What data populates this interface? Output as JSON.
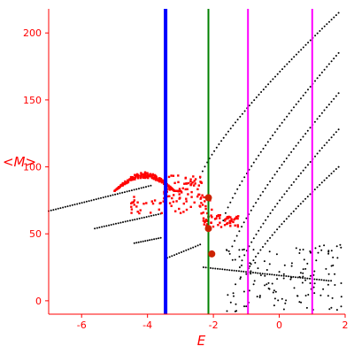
{
  "chart_data": {
    "type": "scatter",
    "title": "",
    "xlabel": "E",
    "ylabel": "<M>",
    "xlim": [
      -7,
      2
    ],
    "ylim": [
      -10,
      218
    ],
    "grid": false,
    "legend": "none",
    "x_ticks": [
      -6,
      -4,
      -2,
      0,
      2
    ],
    "y_ticks": [
      0,
      50,
      100,
      150,
      200
    ],
    "colors": {
      "axis": "#ff0000",
      "points_black": "#000000",
      "points_red": "#ff0000",
      "markers": "#cc2200",
      "line_blue": "#0000ff",
      "line_green": "#008000",
      "line_magenta": "#ff00ff"
    },
    "vertical_lines": [
      {
        "x": -3.45,
        "color": "#0000ff"
      },
      {
        "x": -2.15,
        "color": "#008000"
      },
      {
        "x": -0.95,
        "color": "#ff00ff"
      },
      {
        "x": 1.0,
        "color": "#ff00ff"
      }
    ],
    "black_curves": [
      {
        "x_start": -7.0,
        "x_end": -3.9,
        "y_start": 67,
        "y_end": 86
      },
      {
        "x_start": -5.6,
        "x_end": -3.6,
        "y_start": 54,
        "y_end": 65
      },
      {
        "x_start": -4.4,
        "x_end": -3.6,
        "y_start": 43,
        "y_end": 47
      },
      {
        "x_start": -3.4,
        "x_end": -2.4,
        "y_start": 32,
        "y_end": 42
      },
      {
        "x_start": -2.4,
        "x_end": 1.8,
        "y_start": 92,
        "y_end": 215
      },
      {
        "x_start": -1.7,
        "x_end": 1.8,
        "y_start": 60,
        "y_end": 185
      },
      {
        "x_start": -1.5,
        "x_end": 1.8,
        "y_start": 35,
        "y_end": 155
      },
      {
        "x_start": -1.2,
        "x_end": 1.8,
        "y_start": 25,
        "y_end": 128
      },
      {
        "x_start": -1.0,
        "x_end": 1.8,
        "y_start": 20,
        "y_end": 100
      },
      {
        "x_start": -2.3,
        "x_end": 1.5,
        "y_start": 25,
        "y_end": 15
      }
    ],
    "red_clusters": [
      {
        "x_min": -5.0,
        "x_max": -3.0,
        "y_min": 82,
        "y_max": 96
      },
      {
        "x_min": -3.5,
        "x_max": -2.3,
        "y_min": 76,
        "y_max": 94
      },
      {
        "x_min": -4.5,
        "x_max": -2.0,
        "y_min": 65,
        "y_max": 80
      },
      {
        "x_min": -2.3,
        "x_max": -1.2,
        "y_min": 55,
        "y_max": 64
      }
    ],
    "markers": [
      {
        "x": -2.15,
        "y": 77
      },
      {
        "x": -2.15,
        "y": 54
      },
      {
        "x": -2.05,
        "y": 35
      }
    ]
  }
}
